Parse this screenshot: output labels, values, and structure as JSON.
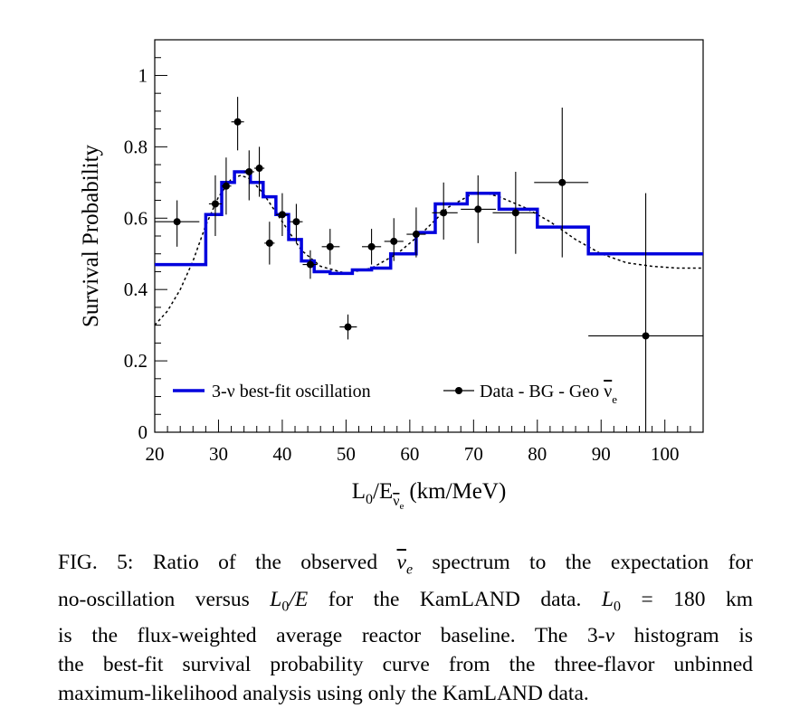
{
  "chart_data": {
    "type": "line",
    "title": "",
    "xlabel": {
      "main": "L",
      "sub0": "0",
      "mid": "/E",
      "sub_nu": "ν",
      "sub_e": "e",
      "units": "(km/MeV)"
    },
    "ylabel": "Survival Probability",
    "xlim": [
      20,
      106
    ],
    "ylim": [
      0,
      1.1
    ],
    "x_ticks": [
      20,
      30,
      40,
      50,
      60,
      70,
      80,
      90,
      100
    ],
    "y_ticks": [
      0,
      0.2,
      0.4,
      0.6,
      0.8,
      1
    ],
    "x_tick_labels": [
      "20",
      "30",
      "40",
      "50",
      "60",
      "70",
      "80",
      "90",
      "100"
    ],
    "y_tick_labels": [
      "0",
      "0.2",
      "0.4",
      "0.6",
      "0.8",
      "1"
    ],
    "legend": {
      "position": "bottom",
      "histogram_label": "3-ν best-fit oscillation",
      "data_label_prefix": "Data - BG - Geo ",
      "data_label_nu": "ν",
      "data_label_sub": "e"
    },
    "series": [
      {
        "name": "3-ν best-fit oscillation",
        "kind": "step-histogram",
        "color": "#0000dd",
        "edges": [
          20,
          28,
          30.5,
          32.5,
          35,
          37,
          39,
          41,
          43,
          45,
          47.5,
          51,
          54,
          57,
          61,
          64,
          69,
          74,
          80,
          88,
          106
        ],
        "values": [
          0.47,
          0.61,
          0.7,
          0.73,
          0.7,
          0.66,
          0.61,
          0.54,
          0.48,
          0.45,
          0.445,
          0.455,
          0.46,
          0.5,
          0.56,
          0.64,
          0.67,
          0.625,
          0.575,
          0.5
        ]
      },
      {
        "name": "",
        "kind": "dashed-curve",
        "color": "#000000",
        "x": [
          20,
          22,
          24,
          26,
          28,
          30,
          32,
          33.5,
          35,
          37,
          40,
          43,
          46,
          50,
          54,
          58,
          62,
          66,
          70,
          72,
          74,
          78,
          82,
          86,
          90,
          94,
          98,
          102,
          106
        ],
        "y": [
          0.3,
          0.34,
          0.4,
          0.48,
          0.58,
          0.66,
          0.71,
          0.72,
          0.71,
          0.67,
          0.59,
          0.51,
          0.465,
          0.445,
          0.46,
          0.5,
          0.56,
          0.63,
          0.67,
          0.67,
          0.66,
          0.63,
          0.59,
          0.54,
          0.5,
          0.475,
          0.465,
          0.46,
          0.46
        ]
      },
      {
        "name": "Data - BG - Geo ν̄e",
        "kind": "points-with-errors",
        "color": "#000000",
        "points": [
          {
            "x": 23.5,
            "y": 0.59,
            "xlo": 20.0,
            "xhi": 27.0,
            "ylo": 0.52,
            "yhi": 0.65
          },
          {
            "x": 29.5,
            "y": 0.64,
            "xlo": 28.5,
            "xhi": 30.5,
            "ylo": 0.55,
            "yhi": 0.72
          },
          {
            "x": 31.2,
            "y": 0.69,
            "xlo": 30.5,
            "xhi": 32.0,
            "ylo": 0.61,
            "yhi": 0.77
          },
          {
            "x": 33.0,
            "y": 0.87,
            "xlo": 32.0,
            "xhi": 34.0,
            "ylo": 0.79,
            "yhi": 0.94
          },
          {
            "x": 34.8,
            "y": 0.73,
            "xlo": 34.0,
            "xhi": 35.6,
            "ylo": 0.65,
            "yhi": 0.79
          },
          {
            "x": 36.4,
            "y": 0.74,
            "xlo": 35.6,
            "xhi": 37.2,
            "ylo": 0.66,
            "yhi": 0.8
          },
          {
            "x": 38.0,
            "y": 0.53,
            "xlo": 37.2,
            "xhi": 38.8,
            "ylo": 0.47,
            "yhi": 0.59
          },
          {
            "x": 40.0,
            "y": 0.61,
            "xlo": 39.0,
            "xhi": 41.0,
            "ylo": 0.55,
            "yhi": 0.67
          },
          {
            "x": 42.2,
            "y": 0.59,
            "xlo": 41.2,
            "xhi": 43.2,
            "ylo": 0.53,
            "yhi": 0.64
          },
          {
            "x": 44.4,
            "y": 0.47,
            "xlo": 43.2,
            "xhi": 45.5,
            "ylo": 0.43,
            "yhi": 0.51
          },
          {
            "x": 47.5,
            "y": 0.52,
            "xlo": 46.2,
            "xhi": 49.0,
            "ylo": 0.47,
            "yhi": 0.57
          },
          {
            "x": 50.3,
            "y": 0.295,
            "xlo": 49.0,
            "xhi": 51.7,
            "ylo": 0.26,
            "yhi": 0.33
          },
          {
            "x": 54.0,
            "y": 0.52,
            "xlo": 52.5,
            "xhi": 55.5,
            "ylo": 0.47,
            "yhi": 0.57
          },
          {
            "x": 57.5,
            "y": 0.535,
            "xlo": 56.0,
            "xhi": 59.0,
            "ylo": 0.48,
            "yhi": 0.6
          },
          {
            "x": 61.0,
            "y": 0.555,
            "xlo": 59.5,
            "xhi": 62.5,
            "ylo": 0.49,
            "yhi": 0.63
          },
          {
            "x": 65.3,
            "y": 0.615,
            "xlo": 63.5,
            "xhi": 67.5,
            "ylo": 0.54,
            "yhi": 0.7
          },
          {
            "x": 70.7,
            "y": 0.625,
            "xlo": 68.0,
            "xhi": 73.5,
            "ylo": 0.53,
            "yhi": 0.72
          },
          {
            "x": 76.6,
            "y": 0.615,
            "xlo": 73.0,
            "xhi": 80.0,
            "ylo": 0.5,
            "yhi": 0.73
          },
          {
            "x": 83.9,
            "y": 0.7,
            "xlo": 79.5,
            "xhi": 88.0,
            "ylo": 0.49,
            "yhi": 0.91
          },
          {
            "x": 97.0,
            "y": 0.27,
            "xlo": 88.0,
            "xhi": 106.0,
            "ylo": 0.0,
            "yhi": 0.67
          }
        ]
      }
    ]
  },
  "caption": {
    "line1": {
      "a": "FIG. 5: Ratio of the observed ",
      "nu": "ν",
      "sub": "e",
      "b": " spectrum to the expectation for"
    },
    "line2": {
      "a": "no-oscillation versus ",
      "L": "L",
      "sub0": "0",
      "slashE": "/E",
      "b": " for the KamLAND data. ",
      "L2": "L",
      "sub02": "0",
      "eq": " = 180 km"
    },
    "line3": {
      "a": "is the flux-weighted average reactor baseline. The 3-",
      "nu": "ν",
      "b": " histogram is"
    },
    "line4": "the best-fit survival probability curve from the three-flavor unbinned",
    "line5": "maximum-likelihood analysis using only the KamLAND data."
  }
}
